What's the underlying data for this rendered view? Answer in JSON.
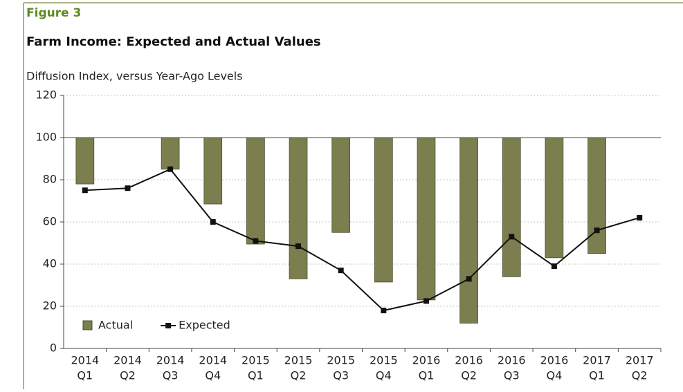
{
  "chart_data": {
    "type": "bar_line",
    "figure_label": "Figure 3",
    "title": "Farm Income: Expected and Actual Values",
    "y_axis_label": "Diffusion Index, versus Year-Ago Levels",
    "categories": [
      [
        "2014",
        "Q1"
      ],
      [
        "2014",
        "Q2"
      ],
      [
        "2014",
        "Q3"
      ],
      [
        "2014",
        "Q4"
      ],
      [
        "2015",
        "Q1"
      ],
      [
        "2015",
        "Q2"
      ],
      [
        "2015",
        "Q3"
      ],
      [
        "2015",
        "Q4"
      ],
      [
        "2016",
        "Q1"
      ],
      [
        "2016",
        "Q2"
      ],
      [
        "2016",
        "Q3"
      ],
      [
        "2016",
        "Q4"
      ],
      [
        "2017",
        "Q1"
      ],
      [
        "2017",
        "Q2"
      ]
    ],
    "bar_baseline": 100,
    "series": [
      {
        "name": "Actual",
        "type": "bar",
        "color": "#7b7e4e",
        "values": [
          78,
          null,
          85,
          68.5,
          49.5,
          33,
          55,
          31.5,
          23,
          12,
          34,
          43,
          45,
          null
        ]
      },
      {
        "name": "Expected",
        "type": "line",
        "color": "#111111",
        "values": [
          75,
          76,
          85,
          60,
          51,
          48.5,
          37,
          18,
          22.5,
          33,
          53,
          39,
          56,
          62
        ]
      }
    ],
    "ylim": [
      0,
      120
    ],
    "yticks": [
      0,
      20,
      40,
      60,
      80,
      100,
      120
    ],
    "grid": true,
    "legend": "lower left"
  }
}
